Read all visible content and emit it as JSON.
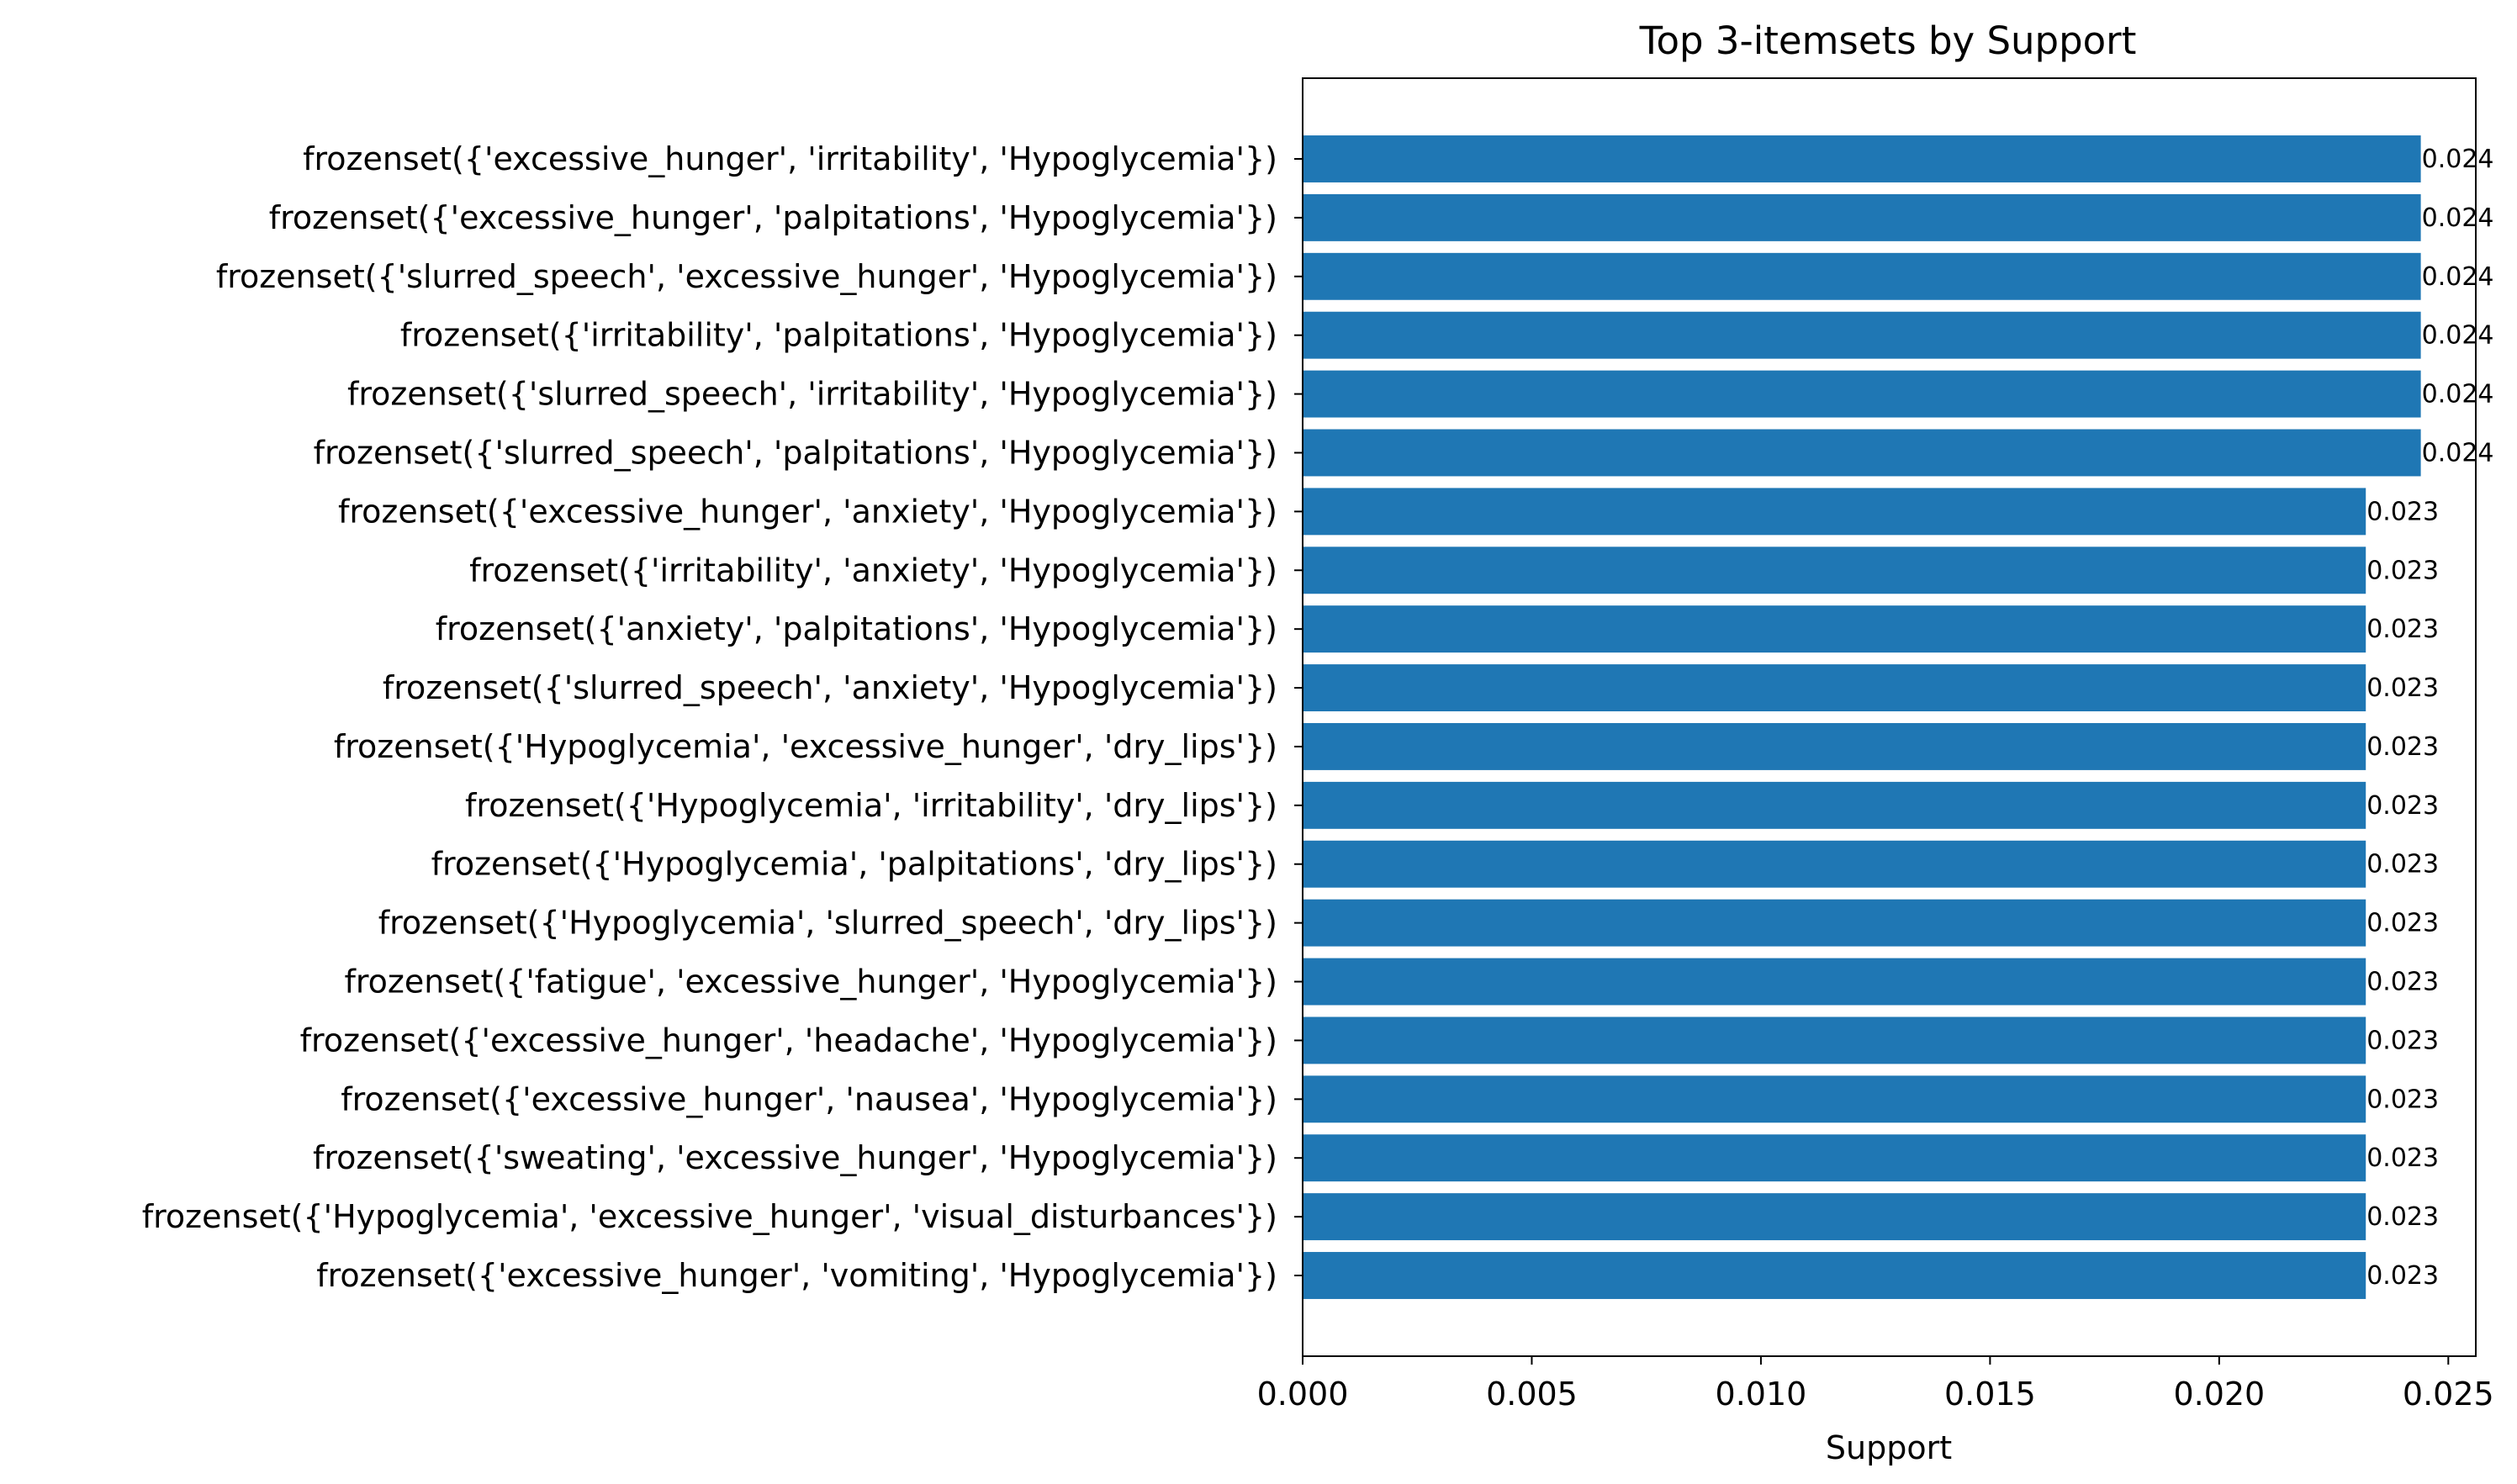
{
  "chart_data": {
    "type": "bar",
    "orientation": "horizontal",
    "title": "Top 3-itemsets by Support",
    "xlabel": "Support",
    "ylabel": "",
    "xlim": [
      0,
      0.0256
    ],
    "xticks": [
      0.0,
      0.005,
      0.01,
      0.015,
      0.02,
      0.025
    ],
    "xtick_labels": [
      "0.000",
      "0.005",
      "0.010",
      "0.015",
      "0.020",
      "0.025"
    ],
    "grid": false,
    "bar_color": "#1f77b4",
    "categories": [
      "frozenset({'excessive_hunger', 'irritability', 'Hypoglycemia'})",
      "frozenset({'excessive_hunger', 'palpitations', 'Hypoglycemia'})",
      "frozenset({'slurred_speech', 'excessive_hunger', 'Hypoglycemia'})",
      "frozenset({'irritability', 'palpitations', 'Hypoglycemia'})",
      "frozenset({'slurred_speech', 'irritability', 'Hypoglycemia'})",
      "frozenset({'slurred_speech', 'palpitations', 'Hypoglycemia'})",
      "frozenset({'excessive_hunger', 'anxiety', 'Hypoglycemia'})",
      "frozenset({'irritability', 'anxiety', 'Hypoglycemia'})",
      "frozenset({'anxiety', 'palpitations', 'Hypoglycemia'})",
      "frozenset({'slurred_speech', 'anxiety', 'Hypoglycemia'})",
      "frozenset({'Hypoglycemia', 'excessive_hunger', 'dry_lips'})",
      "frozenset({'Hypoglycemia', 'irritability', 'dry_lips'})",
      "frozenset({'Hypoglycemia', 'palpitations', 'dry_lips'})",
      "frozenset({'Hypoglycemia', 'slurred_speech', 'dry_lips'})",
      "frozenset({'fatigue', 'excessive_hunger', 'Hypoglycemia'})",
      "frozenset({'excessive_hunger', 'headache', 'Hypoglycemia'})",
      "frozenset({'excessive_hunger', 'nausea', 'Hypoglycemia'})",
      "frozenset({'sweating', 'excessive_hunger', 'Hypoglycemia'})",
      "frozenset({'Hypoglycemia', 'excessive_hunger', 'visual_disturbances'})",
      "frozenset({'excessive_hunger', 'vomiting', 'Hypoglycemia'})"
    ],
    "values": [
      0.0244,
      0.0244,
      0.0244,
      0.0244,
      0.0244,
      0.0244,
      0.0232,
      0.0232,
      0.0232,
      0.0232,
      0.0232,
      0.0232,
      0.0232,
      0.0232,
      0.0232,
      0.0232,
      0.0232,
      0.0232,
      0.0232,
      0.0232
    ],
    "value_labels": [
      "0.024",
      "0.024",
      "0.024",
      "0.024",
      "0.024",
      "0.024",
      "0.023",
      "0.023",
      "0.023",
      "0.023",
      "0.023",
      "0.023",
      "0.023",
      "0.023",
      "0.023",
      "0.023",
      "0.023",
      "0.023",
      "0.023",
      "0.023"
    ]
  }
}
